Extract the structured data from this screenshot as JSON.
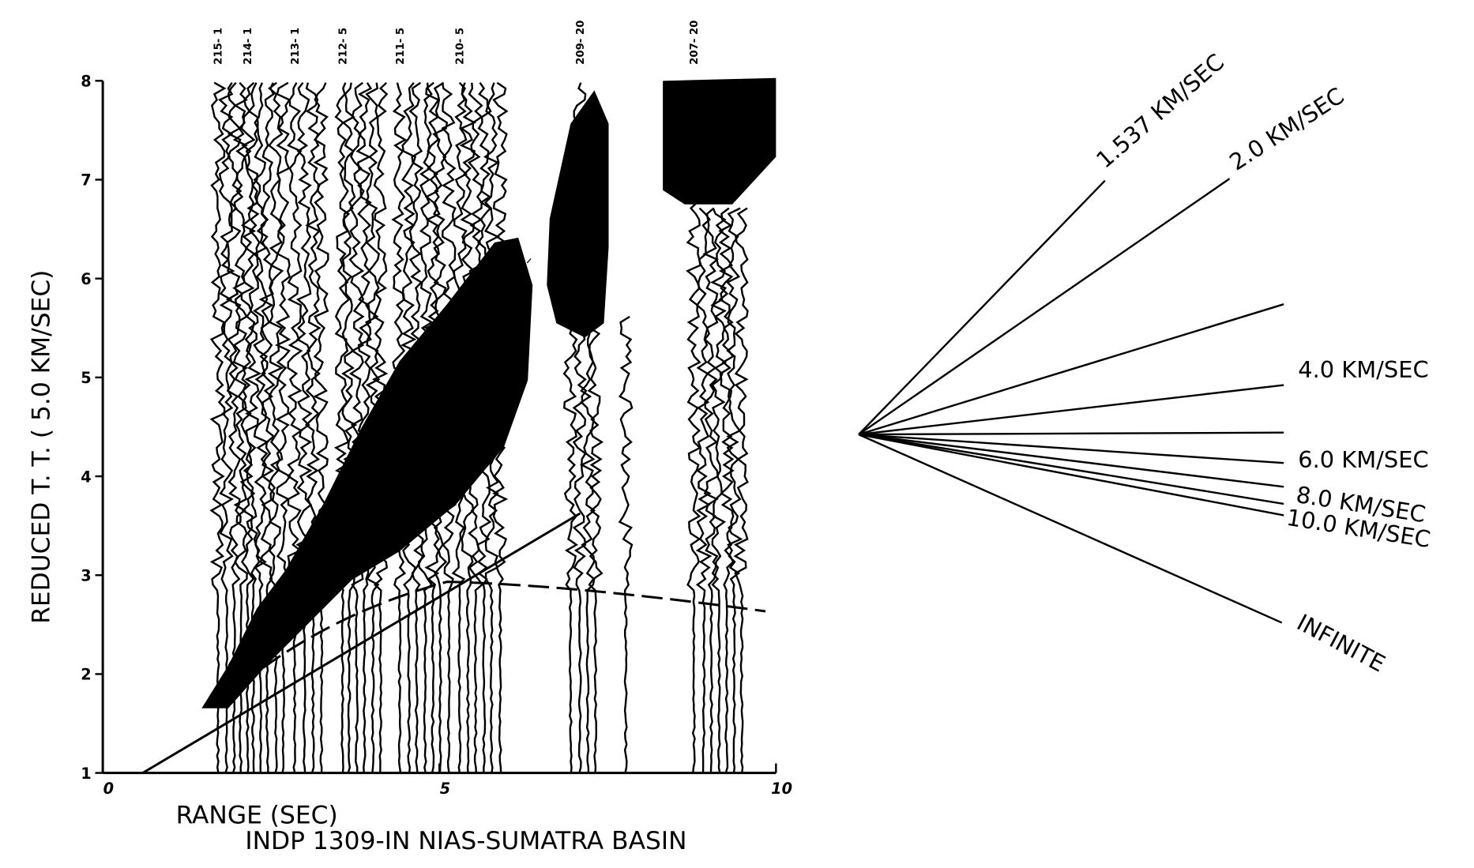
{
  "chart_data": {
    "type": "seismic",
    "title": "INDP 1309-IN NIAS-SUMATRA BASIN",
    "xlabel": "RANGE (SEC)",
    "ylabel": "REDUCED T. T. ( 5.0 KM/SEC)",
    "xlim": [
      0,
      10
    ],
    "ylim": [
      1,
      8
    ],
    "xticks": [
      0,
      5,
      10
    ],
    "yticks": [
      1,
      2,
      3,
      4,
      5,
      6,
      7,
      8
    ],
    "traces": [
      {
        "label": "215- 1",
        "x": 1.71
      },
      {
        "label": "214- 1",
        "x": 2.15
      },
      {
        "label": "213- 1",
        "x": 2.85
      },
      {
        "label": "212- 5",
        "x": 3.56
      },
      {
        "label": "211- 5",
        "x": 4.41
      },
      {
        "label": "210- 5",
        "x": 5.3
      },
      {
        "label": "209- 20",
        "x": 7.09
      },
      {
        "label": "207- 20",
        "x": 8.78
      }
    ],
    "velocity_labels": [
      "1.537 KM/SEC",
      "2.0 KM/SEC",
      "4.0 KM/SEC",
      "6.0 KM/SEC",
      "8.0 KM/SEC",
      "10.0 KM/SEC",
      "INFINITE"
    ]
  }
}
